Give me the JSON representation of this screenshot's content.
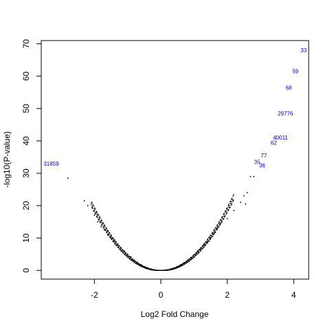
{
  "chart_data": {
    "type": "scatter",
    "xlabel": "Log2 Fold Change",
    "ylabel": "-log10(P-value)",
    "xlim": [
      -3.6,
      4.45
    ],
    "ylim": [
      -2.7,
      71
    ],
    "x_ticks": [
      -2,
      0,
      2,
      4
    ],
    "x_tick_labels": [
      "-2",
      "0",
      "2",
      "4"
    ],
    "y_ticks": [
      0,
      10,
      20,
      30,
      40,
      50,
      60,
      70
    ],
    "y_tick_labels": [
      "0",
      "10",
      "20",
      "30",
      "40",
      "50",
      "60",
      "70"
    ],
    "grid": false,
    "point_color": "#000000",
    "label_color": "#0000cc",
    "trend": "y = 4.9 * x^2 (symmetric volcano envelope)",
    "points": [
      {
        "x": -2.8,
        "y": 28.5
      },
      {
        "x": -2.3,
        "y": 21.5
      },
      {
        "x": -2.2,
        "y": 20.0
      },
      {
        "x": -2.0,
        "y": 17.0
      },
      {
        "x": -1.9,
        "y": 15.0
      },
      {
        "x": -1.8,
        "y": 13.5
      },
      {
        "x": -1.7,
        "y": 12.5
      },
      {
        "x": -1.6,
        "y": 11.0
      },
      {
        "x": -1.5,
        "y": 10.0
      },
      {
        "x": -1.4,
        "y": 9.0
      },
      {
        "x": -1.3,
        "y": 8.0
      },
      {
        "x": -1.2,
        "y": 7.0
      },
      {
        "x": -1.1,
        "y": 6.0
      },
      {
        "x": -1.0,
        "y": 5.0
      },
      {
        "x": -0.9,
        "y": 4.2
      },
      {
        "x": -0.8,
        "y": 3.2
      },
      {
        "x": -0.7,
        "y": 2.5
      },
      {
        "x": -0.6,
        "y": 1.8
      },
      {
        "x": -0.5,
        "y": 1.2
      },
      {
        "x": -0.4,
        "y": 0.8
      },
      {
        "x": -0.3,
        "y": 0.45
      },
      {
        "x": -0.2,
        "y": 0.2
      },
      {
        "x": -0.1,
        "y": 0.05
      },
      {
        "x": 0.0,
        "y": 0.0
      },
      {
        "x": 0.1,
        "y": 0.05
      },
      {
        "x": 0.2,
        "y": 0.2
      },
      {
        "x": 0.3,
        "y": 0.45
      },
      {
        "x": 0.4,
        "y": 0.8
      },
      {
        "x": 0.5,
        "y": 1.2
      },
      {
        "x": 0.6,
        "y": 1.8
      },
      {
        "x": 0.7,
        "y": 2.4
      },
      {
        "x": 0.8,
        "y": 3.1
      },
      {
        "x": 0.9,
        "y": 3.9
      },
      {
        "x": 1.0,
        "y": 4.9
      },
      {
        "x": 1.1,
        "y": 5.8
      },
      {
        "x": 1.2,
        "y": 6.8
      },
      {
        "x": 1.3,
        "y": 7.8
      },
      {
        "x": 1.4,
        "y": 8.8
      },
      {
        "x": 1.5,
        "y": 10.0
      },
      {
        "x": 1.6,
        "y": 11.5
      },
      {
        "x": 1.7,
        "y": 13.0
      },
      {
        "x": 1.8,
        "y": 14.5
      },
      {
        "x": 2.0,
        "y": 16.0
      },
      {
        "x": 2.2,
        "y": 18.5
      },
      {
        "x": 2.4,
        "y": 21.0
      },
      {
        "x": 2.5,
        "y": 23.0
      },
      {
        "x": 2.6,
        "y": 24.0
      },
      {
        "x": 2.55,
        "y": 20.5
      },
      {
        "x": 2.7,
        "y": 29.0
      },
      {
        "x": 2.8,
        "y": 29.0
      }
    ],
    "labeled_points": [
      {
        "label": "33",
        "x": 4.3,
        "y": 68
      },
      {
        "label": "59",
        "x": 4.05,
        "y": 61.5
      },
      {
        "label": "68",
        "x": 3.85,
        "y": 56.5
      },
      {
        "label": "29776",
        "x": 3.75,
        "y": 48.5
      },
      {
        "label": "40011",
        "x": 3.6,
        "y": 41
      },
      {
        "label": "62",
        "x": 3.4,
        "y": 39.5
      },
      {
        "label": "77",
        "x": 3.1,
        "y": 35.5
      },
      {
        "label": "35",
        "x": 2.9,
        "y": 33.5
      },
      {
        "label": "36",
        "x": 3.05,
        "y": 32.5
      },
      {
        "label": "31859",
        "x": -3.3,
        "y": 33
      }
    ]
  }
}
